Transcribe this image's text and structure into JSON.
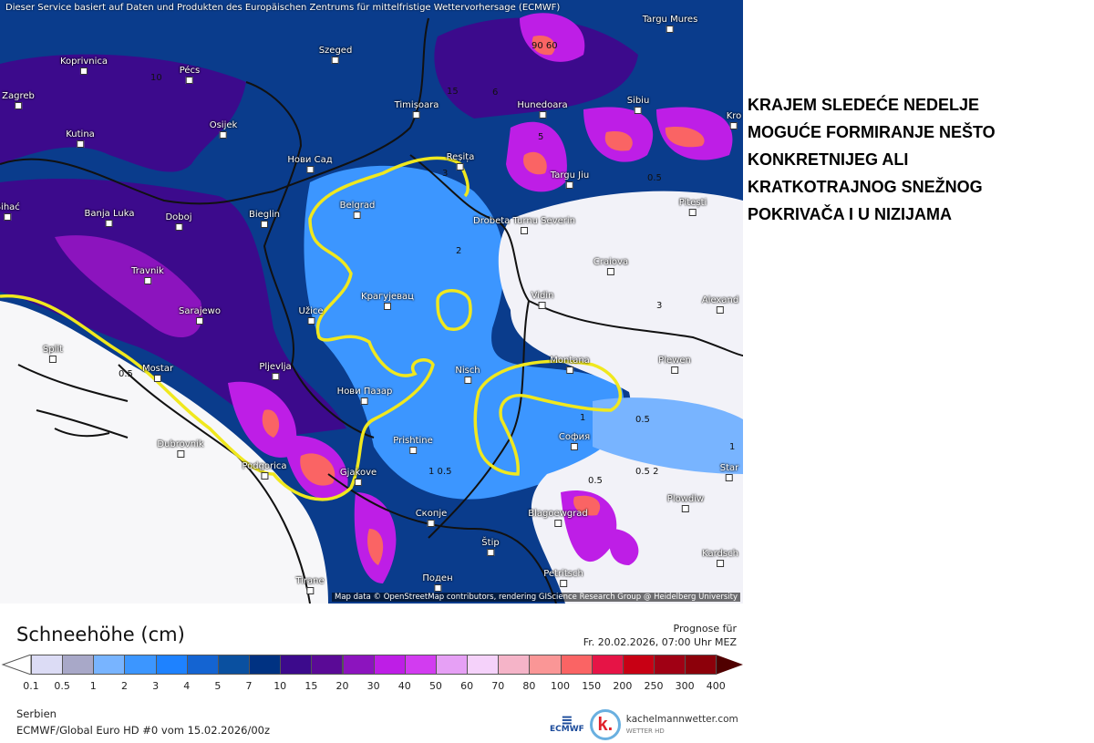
{
  "map": {
    "notice": "Dieser Service basiert auf Daten und Produkten des Europäischen Zentrums für mittelfristige Wettervorhersage (ECMWF)",
    "credit": "Map data © OpenStreetMap contributors, rendering GIScience Research Group @ Heidelberg University",
    "cities": [
      "Targu Mures",
      "Koprivnica",
      "Pécs",
      "Szeged",
      "Zagreb",
      "Kutina",
      "Osijek",
      "Timișoara",
      "Hunedoara",
      "Sibiu",
      "Kro",
      "Нови Сад",
      "Reșița",
      "Targu Jiu",
      "Pitești",
      "Bihać",
      "Banja Luka",
      "Doboj",
      "Bieglin",
      "Belgrad",
      "Drobeta Turnu Severin",
      "Craiova",
      "Travnik",
      "Sarajewo",
      "Kрагујевац",
      "Užice",
      "Vidin",
      "Alexand",
      "Split",
      "Mostar",
      "Pljevlja",
      "Нови Пазар",
      "Nisch",
      "Montana",
      "Plewen",
      "Dubrovnik",
      "Prishtine",
      "Podgorica",
      "Gjakove",
      "София",
      "Star",
      "Скопје",
      "Blagoewgrad",
      "Plowdiw",
      "Štip",
      "Kardsch",
      "Petritsch",
      "Tirane",
      "Поден"
    ],
    "contour_labels": [
      "90 60",
      "15",
      "10",
      "5",
      "6",
      "0.5",
      "3",
      "2",
      "0.5",
      "1",
      "1 0.5",
      "0.5 2",
      "0.5",
      "0.5",
      "3",
      "1"
    ],
    "highlight_color": "#f0e81e"
  },
  "annotation": [
    "KRAJEM SLEDEĆE NEDELJE",
    "MOGUĆE FORMIRANJE NEŠTO",
    "KONKRETNIJEG ALI",
    "KRATKOTRAJNOG SNEŽNOG",
    "POKRIVAČA I U NIZIJAMA"
  ],
  "legend": {
    "title": "Schneehöhe (cm)",
    "prognose_label": "Prognose für",
    "prognose_time": "Fr. 20.02.2026, 07:00 Uhr MEZ",
    "ticks": [
      "0.1",
      "0.5",
      "1",
      "2",
      "3",
      "4",
      "5",
      "7",
      "10",
      "15",
      "20",
      "30",
      "40",
      "50",
      "60",
      "70",
      "80",
      "100",
      "150",
      "200",
      "250",
      "300",
      "400"
    ],
    "colors": [
      "#dcdcf5",
      "#a8a8c8",
      "#78b4ff",
      "#3c96ff",
      "#1e82ff",
      "#1464d2",
      "#0a50a0",
      "#003282",
      "#3c0a8c",
      "#5a0a96",
      "#8c14be",
      "#be1ee6",
      "#d23cf0",
      "#e6a0f5",
      "#f5d2fa",
      "#f5b4c8",
      "#fa9696",
      "#fa6464",
      "#e61446",
      "#c80014",
      "#a00014",
      "#8c000a"
    ],
    "overflow_color": "#500000"
  },
  "footer": {
    "region": "Serbien",
    "model": "ECMWF/Global Euro HD #0 vom  15.02.2026/00z",
    "ecmwf_logo": "ECMWF",
    "brand": "kachelmannwetter.com",
    "brand_sub": "WETTER HD",
    "brand_mark": "k."
  }
}
